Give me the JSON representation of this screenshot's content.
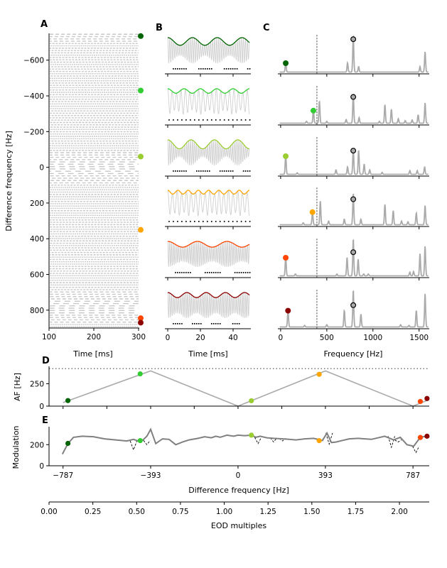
{
  "chart_data": {
    "type": "line",
    "colors": {
      "traces": [
        "#006400",
        "#32cd32",
        "#9acd32",
        "#ffa500",
        "#ff4500",
        "#8b0000"
      ],
      "grey_line": "#aaaaaa",
      "raster": "#c8c8c8",
      "modulation_line": "#808080",
      "peak_marker": "#aaaaaa"
    },
    "panelA": {
      "label": "A",
      "xlabel": "Time [ms]",
      "ylabel": "Difference frequency [Hz]",
      "xlim": [
        100,
        300
      ],
      "ylim": [
        -750,
        900
      ],
      "y_inverted": true,
      "xticks": [
        100,
        200,
        300
      ],
      "xtick_labels": [
        "100",
        "200",
        "300"
      ],
      "yticks": [
        -600,
        -400,
        -200,
        0,
        200,
        400,
        600,
        800
      ],
      "ytick_labels": [
        "−600",
        "−400",
        "−200",
        "0",
        "200",
        "400",
        "600",
        "800"
      ],
      "marker_df": [
        -735,
        -430,
        -60,
        350,
        845,
        870
      ]
    },
    "panelB": {
      "label": "B",
      "xlabel": "Time [ms]",
      "xlim": [
        0,
        50
      ],
      "xticks": [
        0,
        20,
        40
      ],
      "xtick_labels": [
        "0",
        "20",
        "40"
      ],
      "rows": [
        {
          "beat_freq": 66,
          "carrier_freq": 800,
          "depth": 0.6
        },
        {
          "beat_freq": 100,
          "carrier_freq": 370,
          "depth": 0.35
        },
        {
          "beat_freq": 70,
          "carrier_freq": 860,
          "depth": 0.7
        },
        {
          "beat_freq": 160,
          "carrier_freq": 350,
          "depth": 0.3
        },
        {
          "beat_freq": 55,
          "carrier_freq": 900,
          "depth": 0.45
        },
        {
          "beat_freq": 85,
          "carrier_freq": 900,
          "depth": 0.4
        }
      ]
    },
    "panelC": {
      "label": "C",
      "xlabel": "Frequency [Hz]",
      "xlim": [
        -30,
        1610
      ],
      "xticks": [
        0,
        500,
        1000,
        1500
      ],
      "xtick_labels": [
        "0",
        "500",
        "1000",
        "1500"
      ],
      "dashed_line_x": 393,
      "eod_peak_x": 787,
      "rows": [
        {
          "marker_x": 55,
          "marker_y": 0.25,
          "eod_y": 0.9,
          "peaks": [
            [
              55,
              0.25
            ],
            [
              725,
              0.25
            ],
            [
              787,
              1.0
            ],
            [
              845,
              0.15
            ],
            [
              1510,
              0.15
            ],
            [
              1565,
              0.55
            ]
          ]
        },
        {
          "marker_x": 355,
          "marker_y": 0.35,
          "eod_y": 0.72,
          "peaks": [
            [
              280,
              0.05
            ],
            [
              355,
              0.35
            ],
            [
              420,
              0.6
            ],
            [
              500,
              0.05
            ],
            [
              710,
              0.1
            ],
            [
              787,
              0.8
            ],
            [
              850,
              0.15
            ],
            [
              1070,
              0.05
            ],
            [
              1130,
              0.5
            ],
            [
              1200,
              0.38
            ],
            [
              1275,
              0.12
            ],
            [
              1350,
              0.07
            ],
            [
              1425,
              0.09
            ],
            [
              1490,
              0.23
            ],
            [
              1565,
              0.55
            ]
          ]
        },
        {
          "marker_x": 55,
          "marker_y": 0.5,
          "eod_y": 0.65,
          "peaks": [
            [
              55,
              0.5
            ],
            [
              180,
              0.04
            ],
            [
              600,
              0.12
            ],
            [
              725,
              0.2
            ],
            [
              787,
              0.72
            ],
            [
              845,
              0.65
            ],
            [
              905,
              0.28
            ],
            [
              965,
              0.12
            ],
            [
              1100,
              0.05
            ],
            [
              1400,
              0.1
            ],
            [
              1480,
              0.1
            ],
            [
              1560,
              0.2
            ]
          ]
        },
        {
          "marker_x": 345,
          "marker_y": 0.35,
          "eod_y": 0.7,
          "peaks": [
            [
              245,
              0.05
            ],
            [
              345,
              0.35
            ],
            [
              430,
              0.65
            ],
            [
              520,
              0.1
            ],
            [
              690,
              0.15
            ],
            [
              787,
              0.85
            ],
            [
              870,
              0.15
            ],
            [
              1130,
              0.55
            ],
            [
              1220,
              0.38
            ],
            [
              1310,
              0.1
            ],
            [
              1380,
              0.08
            ],
            [
              1470,
              0.32
            ],
            [
              1565,
              0.52
            ]
          ]
        },
        {
          "marker_x": 55,
          "marker_y": 0.5,
          "eod_y": 0.65,
          "peaks": [
            [
              55,
              0.5
            ],
            [
              160,
              0.05
            ],
            [
              610,
              0.05
            ],
            [
              720,
              0.5
            ],
            [
              787,
              1.0
            ],
            [
              840,
              0.45
            ],
            [
              900,
              0.05
            ],
            [
              950,
              0.05
            ],
            [
              1400,
              0.1
            ],
            [
              1440,
              0.12
            ],
            [
              1510,
              0.6
            ],
            [
              1565,
              0.8
            ]
          ]
        },
        {
          "marker_x": 80,
          "marker_y": 0.45,
          "eod_y": 0.6,
          "peaks": [
            [
              80,
              0.45
            ],
            [
              260,
              0.04
            ],
            [
              500,
              0.06
            ],
            [
              690,
              0.45
            ],
            [
              787,
              1.0
            ],
            [
              870,
              0.35
            ],
            [
              1300,
              0.06
            ],
            [
              1390,
              0.04
            ],
            [
              1470,
              0.45
            ],
            [
              1565,
              0.9
            ]
          ]
        }
      ]
    },
    "panelD": {
      "label": "D",
      "ylabel": "AF [Hz]",
      "xlim": [
        -850,
        860
      ],
      "ylim": [
        0,
        420
      ],
      "yticks": [
        0,
        250
      ],
      "ytick_labels": [
        "0",
        "250"
      ],
      "dotted_line_y": 393,
      "x": [
        -787,
        -393,
        0,
        393,
        787,
        860
      ],
      "y": [
        40,
        393,
        0,
        393,
        0,
        73
      ],
      "markers": [
        [
          -765,
          62
        ],
        [
          -440,
          360
        ],
        [
          60,
          60
        ],
        [
          365,
          355
        ],
        [
          820,
          52
        ],
        [
          850,
          85
        ]
      ]
    },
    "panelE": {
      "label": "E",
      "ylabel": "Modulation",
      "xlabel": "Difference frequency [Hz]",
      "xlim": [
        -850,
        860
      ],
      "ylim": [
        0,
        370
      ],
      "yticks": [
        0,
        200
      ],
      "ytick_labels": [
        "0",
        "200"
      ],
      "xticks": [
        -787,
        -393,
        0,
        393,
        787
      ],
      "xtick_labels": [
        "−787",
        "−393",
        "0",
        "393",
        "787"
      ],
      "x": [
        -790,
        -765,
        -740,
        -700,
        -650,
        -600,
        -550,
        -500,
        -470,
        -450,
        -430,
        -410,
        -393,
        -370,
        -340,
        -310,
        -280,
        -250,
        -220,
        -180,
        -150,
        -120,
        -100,
        -80,
        -50,
        -20,
        0,
        30,
        60,
        80,
        100,
        130,
        160,
        200,
        230,
        260,
        300,
        340,
        380,
        400,
        420,
        440,
        470,
        500,
        540,
        600,
        660,
        700,
        730,
        760,
        790,
        820,
        860
      ],
      "y": [
        110,
        210,
        270,
        280,
        275,
        255,
        245,
        235,
        250,
        235,
        240,
        280,
        345,
        210,
        255,
        250,
        200,
        225,
        245,
        260,
        275,
        265,
        280,
        270,
        290,
        280,
        290,
        285,
        290,
        270,
        280,
        265,
        260,
        255,
        250,
        245,
        255,
        260,
        240,
        310,
        220,
        225,
        240,
        255,
        260,
        250,
        280,
        245,
        270,
        200,
        185,
        270,
        285
      ],
      "dashed_dips": [
        [
          -470,
          150
        ],
        [
          -410,
          200
        ],
        [
          90,
          210
        ],
        [
          160,
          225
        ],
        [
          200,
          235
        ],
        [
          410,
          205
        ],
        [
          690,
          175
        ],
        [
          720,
          225
        ],
        [
          800,
          125
        ]
      ],
      "markers": [
        [
          -765,
          212
        ],
        [
          -440,
          238
        ],
        [
          60,
          290
        ],
        [
          365,
          238
        ],
        [
          820,
          268
        ],
        [
          850,
          280
        ]
      ]
    },
    "eod_axis": {
      "xlabel": "EOD multiples",
      "xlim": [
        0,
        2.17
      ],
      "xticks": [
        0,
        0.25,
        0.5,
        0.75,
        1.0,
        1.25,
        1.5,
        1.75,
        2.0
      ],
      "xtick_labels": [
        "0.00",
        "0.25",
        "0.50",
        "0.75",
        "1.00",
        "1.25",
        "1.50",
        "1.75",
        "2.00"
      ]
    }
  }
}
